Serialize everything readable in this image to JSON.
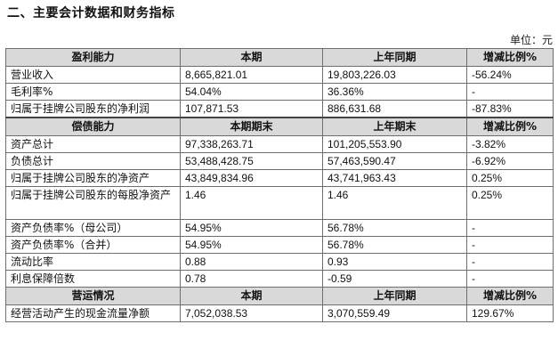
{
  "title": "二、主要会计数据和财务指标",
  "unit": "单位：元",
  "sections": [
    {
      "headers": [
        "盈利能力",
        "本期",
        "上年同期",
        "增减比例%"
      ],
      "rows": [
        [
          "营业收入",
          "8,665,821.01",
          "19,803,226.03",
          "-56.24%"
        ],
        [
          "毛利率%",
          "54.04%",
          "36.36%",
          "-"
        ],
        [
          "归属于挂牌公司股东的净利润",
          "107,871.53",
          "886,631.68",
          "-87.83%"
        ]
      ]
    },
    {
      "headers": [
        "偿债能力",
        "本期期末",
        "上年期末",
        "增减比例%"
      ],
      "rows": [
        [
          "资产总计",
          "97,338,263.71",
          "101,205,553.90",
          "-3.82%"
        ],
        [
          "负债总计",
          "53,488,428.75",
          "57,463,590.47",
          "-6.92%"
        ],
        [
          "归属于挂牌公司股东的净资产",
          "43,849,834.96",
          "43,741,963.43",
          "0.25%"
        ],
        [
          "归属于挂牌公司股东的每股净资产",
          "1.46",
          "1.46",
          "0.25%"
        ],
        [
          "资产负债率%（母公司）",
          "54.95%",
          "56.78%",
          "-"
        ],
        [
          "资产负债率%（合并）",
          "54.95%",
          "56.78%",
          "-"
        ],
        [
          "流动比率",
          "0.88",
          "0.93",
          "-"
        ],
        [
          "利息保障倍数",
          "0.78",
          "-0.59",
          "-"
        ]
      ]
    },
    {
      "headers": [
        "营运情况",
        "本期",
        "上年同期",
        "增减比例%"
      ],
      "rows": [
        [
          "经营活动产生的现金流量净额",
          "7,052,038.53",
          "3,070,559.49",
          "129.67%"
        ]
      ]
    }
  ]
}
